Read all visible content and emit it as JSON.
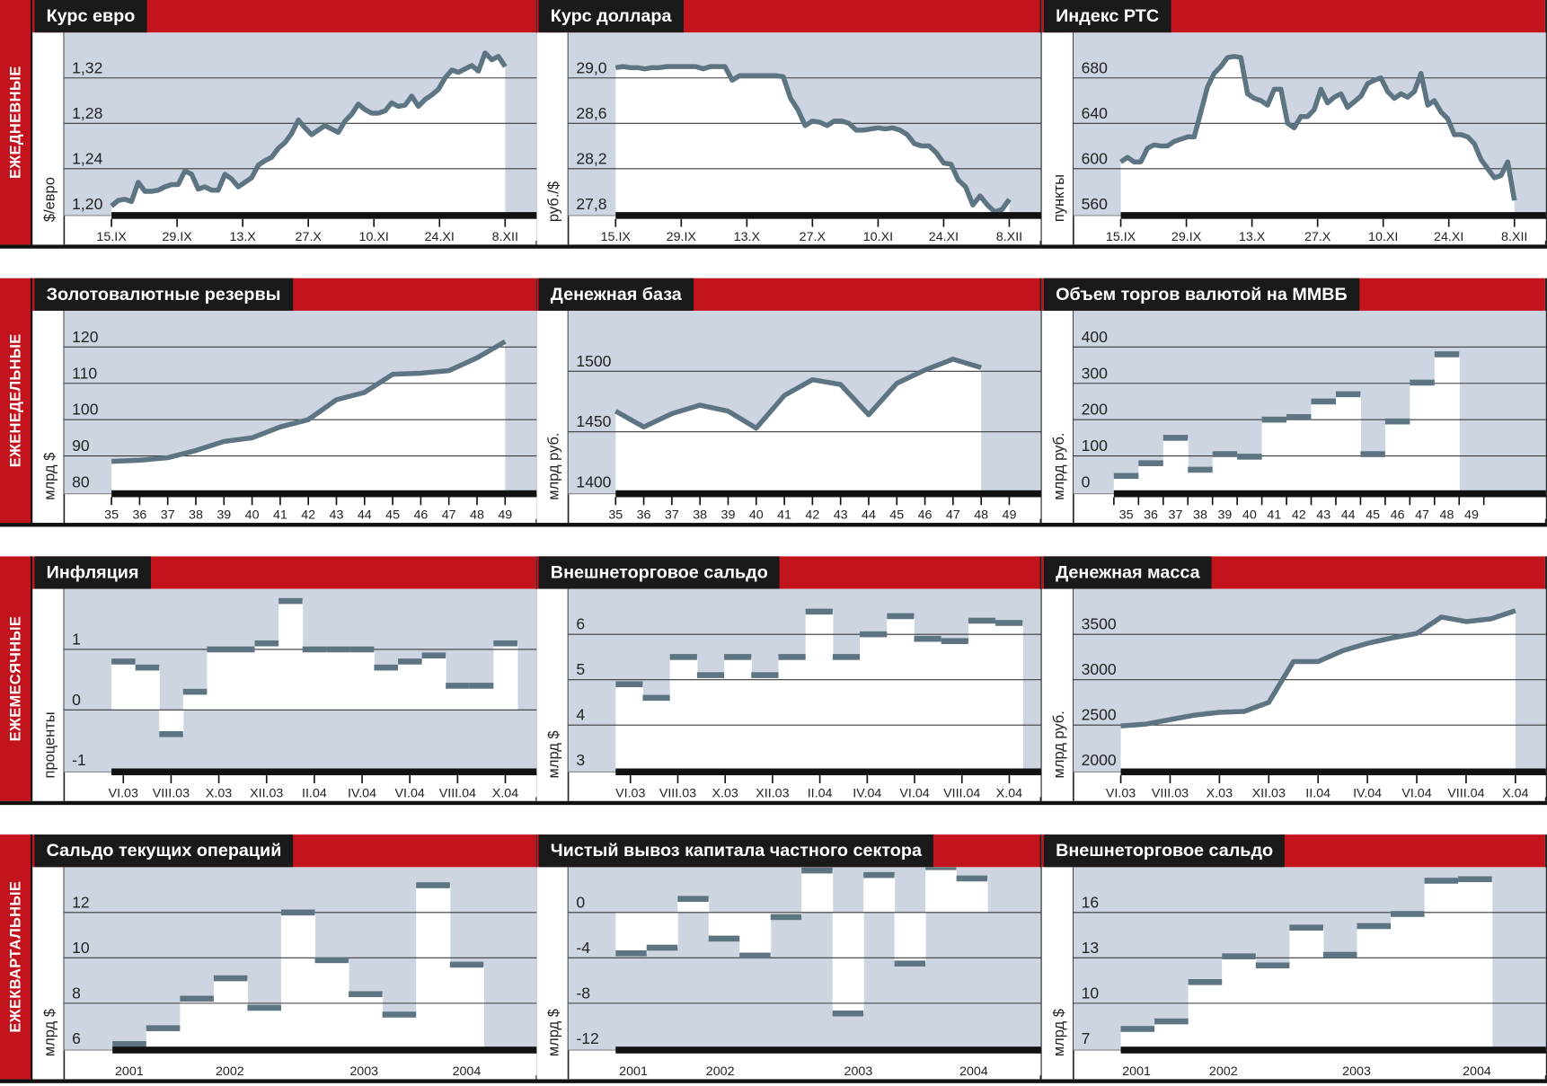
{
  "rows": [
    {
      "label": "ЕЖЕДНЕВНЫЕ"
    },
    {
      "label": "ЕЖЕНЕДЕЛЬНЫЕ"
    },
    {
      "label": "ЕЖЕМЕСЯЧНЫЕ"
    },
    {
      "label": "ЕЖЕКВАРТАЛЬНЫЕ"
    }
  ],
  "colors": {
    "accent_red": "#c3131c",
    "title_black": "#1a1a1a",
    "plot_bg": "#cdd5e2",
    "series": "#5d7482",
    "fill": "#ffffff"
  },
  "chart_data": [
    {
      "type": "line",
      "title": "Курс евро",
      "ylabel": "$/евро",
      "ylim": [
        1.2,
        1.36
      ],
      "yticks": [
        "1,20",
        "1,24",
        "1,28",
        "1,32"
      ],
      "ytick_values": [
        1.2,
        1.24,
        1.28,
        1.32
      ],
      "xlabels": [
        "15.IX",
        "29.IX",
        "13.X",
        "27.X",
        "10.XI",
        "24.XI",
        "8.XII"
      ],
      "values": [
        1.207,
        1.212,
        1.213,
        1.211,
        1.228,
        1.22,
        1.22,
        1.221,
        1.224,
        1.226,
        1.226,
        1.238,
        1.235,
        1.222,
        1.224,
        1.221,
        1.221,
        1.235,
        1.231,
        1.224,
        1.228,
        1.232,
        1.243,
        1.247,
        1.25,
        1.258,
        1.263,
        1.271,
        1.283,
        1.276,
        1.27,
        1.274,
        1.278,
        1.275,
        1.272,
        1.282,
        1.288,
        1.297,
        1.292,
        1.289,
        1.289,
        1.291,
        1.298,
        1.295,
        1.296,
        1.304,
        1.295,
        1.301,
        1.305,
        1.31,
        1.32,
        1.327,
        1.325,
        1.328,
        1.331,
        1.326,
        1.342,
        1.336,
        1.339,
        1.33
      ]
    },
    {
      "type": "line",
      "title": "Курс доллара",
      "ylabel": "руб./$",
      "ylim": [
        27.8,
        29.4
      ],
      "yticks": [
        "27,8",
        "28,2",
        "28,6",
        "29,0"
      ],
      "ytick_values": [
        27.8,
        28.2,
        28.6,
        29.0
      ],
      "xlabels": [
        "15.IX",
        "29.IX",
        "13.X",
        "27.X",
        "10.XI",
        "24.XI",
        "8.XII"
      ],
      "values": [
        29.09,
        29.1,
        29.09,
        29.09,
        29.08,
        29.09,
        29.09,
        29.1,
        29.1,
        29.1,
        29.1,
        29.1,
        29.08,
        29.1,
        29.1,
        29.1,
        28.98,
        29.02,
        29.02,
        29.02,
        29.02,
        29.02,
        29.02,
        29.01,
        28.82,
        28.72,
        28.58,
        28.62,
        28.61,
        28.58,
        28.62,
        28.62,
        28.6,
        28.54,
        28.54,
        28.55,
        28.56,
        28.55,
        28.56,
        28.54,
        28.5,
        28.42,
        28.4,
        28.4,
        28.34,
        28.25,
        28.24,
        28.1,
        28.04,
        27.88,
        27.96,
        27.88,
        27.82,
        27.84,
        27.93
      ]
    },
    {
      "type": "line",
      "title": "Индекс РТС",
      "ylabel": "пункты",
      "ylim": [
        560,
        720
      ],
      "yticks": [
        "560",
        "600",
        "640",
        "680"
      ],
      "ytick_values": [
        560,
        600,
        640,
        680
      ],
      "xlabels": [
        "15.IX",
        "29.IX",
        "13.X",
        "27.X",
        "10.XI",
        "24.XI",
        "8.XII"
      ],
      "values": [
        606,
        610,
        606,
        606,
        618,
        621,
        620,
        620,
        624,
        626,
        628,
        628,
        650,
        672,
        684,
        690,
        698,
        699,
        698,
        666,
        662,
        660,
        656,
        670,
        670,
        640,
        636,
        646,
        646,
        652,
        670,
        658,
        663,
        666,
        654,
        659,
        664,
        675,
        678,
        680,
        668,
        662,
        666,
        663,
        668,
        684,
        656,
        660,
        650,
        644,
        630,
        630,
        628,
        622,
        608,
        600,
        592,
        594,
        606,
        572
      ]
    },
    {
      "type": "line",
      "title": "Золотовалютные резервы",
      "ylabel": "млрд $",
      "ylim": [
        80,
        130
      ],
      "yticks": [
        "80",
        "90",
        "100",
        "110",
        "120"
      ],
      "ytick_values": [
        80,
        90,
        100,
        110,
        120
      ],
      "xlabels": [
        "35",
        "36",
        "37",
        "38",
        "39",
        "40",
        "41",
        "42",
        "43",
        "44",
        "45",
        "46",
        "47",
        "48",
        "49"
      ],
      "values": [
        88.5,
        88.8,
        89.5,
        91.5,
        94,
        95,
        98,
        100,
        105.5,
        107.5,
        112.5,
        112.8,
        113.5,
        117,
        121.5
      ]
    },
    {
      "type": "line",
      "title": "Денежная база",
      "ylabel": "млрд руб.",
      "ylim": [
        1400,
        1550
      ],
      "yticks": [
        "1400",
        "1450",
        "1500"
      ],
      "ytick_values": [
        1400,
        1450,
        1500
      ],
      "xlabels": [
        "35",
        "36",
        "37",
        "38",
        "39",
        "40",
        "41",
        "42",
        "43",
        "44",
        "45",
        "46",
        "47",
        "48",
        "49"
      ],
      "values": [
        1467,
        1454,
        1465,
        1472,
        1467,
        1453,
        1480,
        1493,
        1489,
        1464,
        1490,
        1501,
        1510,
        1503
      ]
    },
    {
      "type": "bar",
      "title": "Объем торгов валютой на ММВБ",
      "ylabel": "млрд руб.",
      "ylim": [
        0,
        500
      ],
      "yticks": [
        "0",
        "100",
        "200",
        "300",
        "400"
      ],
      "ytick_values": [
        0,
        100,
        200,
        300,
        400
      ],
      "xlabels": [
        "35",
        "36",
        "37",
        "38",
        "39",
        "40",
        "41",
        "42",
        "43",
        "44",
        "45",
        "46",
        "47",
        "48",
        "49"
      ],
      "values": [
        45,
        80,
        150,
        62,
        105,
        98,
        200,
        207,
        250,
        270,
        105,
        195,
        302,
        380
      ]
    },
    {
      "type": "bar",
      "title": "Инфляция",
      "ylabel": "проценты",
      "ylim": [
        -1,
        2
      ],
      "yticks": [
        "-1",
        "0",
        "1"
      ],
      "ytick_values": [
        -1,
        0,
        1
      ],
      "xlabels": [
        "VI.03",
        "VIII.03",
        "X.03",
        "XII.03",
        "II.04",
        "IV.04",
        "VI.04",
        "VIII.04",
        "X.04"
      ],
      "values": [
        0.8,
        0.7,
        -0.4,
        0.3,
        1.0,
        1.0,
        1.1,
        1.8,
        1.0,
        1.0,
        1.0,
        0.7,
        0.8,
        0.9,
        0.4,
        0.4,
        1.1
      ]
    },
    {
      "type": "bar",
      "title": "Внешнеторговое сальдо",
      "ylabel": "млрд $",
      "ylim": [
        3,
        7
      ],
      "yticks": [
        "3",
        "4",
        "5",
        "6"
      ],
      "ytick_values": [
        3,
        4,
        5,
        6
      ],
      "xlabels": [
        "VI.03",
        "VIII.03",
        "X.03",
        "XII.03",
        "II.04",
        "IV.04",
        "VI.04",
        "VIII.04",
        "X.04"
      ],
      "values": [
        4.9,
        4.6,
        5.5,
        5.1,
        5.5,
        5.1,
        5.5,
        6.5,
        5.5,
        6.0,
        6.4,
        5.9,
        5.85,
        6.3,
        6.25
      ]
    },
    {
      "type": "line",
      "title": "Денежная масса",
      "ylabel": "млрд руб.",
      "ylim": [
        2000,
        4000
      ],
      "yticks": [
        "2000",
        "2500",
        "3000",
        "3500"
      ],
      "ytick_values": [
        2000,
        2500,
        3000,
        3500
      ],
      "xlabels": [
        "VI.03",
        "VIII.03",
        "X.03",
        "XII.03",
        "II.04",
        "IV.04",
        "VI.04",
        "VIII.04",
        "X.04"
      ],
      "values": [
        2490,
        2510,
        2560,
        2610,
        2640,
        2650,
        2750,
        3200,
        3200,
        3320,
        3400,
        3460,
        3510,
        3690,
        3640,
        3670,
        3760
      ]
    },
    {
      "type": "bar",
      "title": "Сальдо текущих операций",
      "ylabel": "млрд $",
      "ylim": [
        6,
        14
      ],
      "yticks": [
        "6",
        "8",
        "10",
        "12"
      ],
      "ytick_values": [
        6,
        8,
        10,
        12
      ],
      "xlabels": [
        "2001",
        "2002",
        "2003",
        "2004"
      ],
      "values": [
        6.2,
        6.9,
        8.2,
        9.1,
        7.8,
        12.0,
        9.9,
        8.4,
        7.5,
        13.2,
        9.7
      ]
    },
    {
      "type": "bar",
      "title": "Чистый вывоз капитала частного сектора",
      "ylabel": "млрд $",
      "ylim": [
        -12,
        4
      ],
      "yticks": [
        "-12",
        "-8",
        "-4",
        "0"
      ],
      "ytick_values": [
        -12,
        -8,
        -4,
        0
      ],
      "xlabels": [
        "2001",
        "2002",
        "2003",
        "2004"
      ],
      "values": [
        -3.6,
        -3.1,
        1.2,
        -2.3,
        -3.8,
        -0.4,
        3.7,
        -8.9,
        3.3,
        -4.5,
        4.0,
        3.0
      ]
    },
    {
      "type": "bar",
      "title": "Внешнеторговое сальдо",
      "ylabel": "млрд $",
      "ylim": [
        7,
        19
      ],
      "yticks": [
        "7",
        "10",
        "13",
        "16"
      ],
      "ytick_values": [
        7,
        10,
        13,
        16
      ],
      "xlabels": [
        "2001",
        "2002",
        "2003",
        "2004"
      ],
      "values": [
        8.3,
        8.8,
        11.4,
        13.1,
        12.5,
        15.0,
        13.2,
        15.1,
        15.9,
        18.1,
        18.2
      ]
    }
  ]
}
